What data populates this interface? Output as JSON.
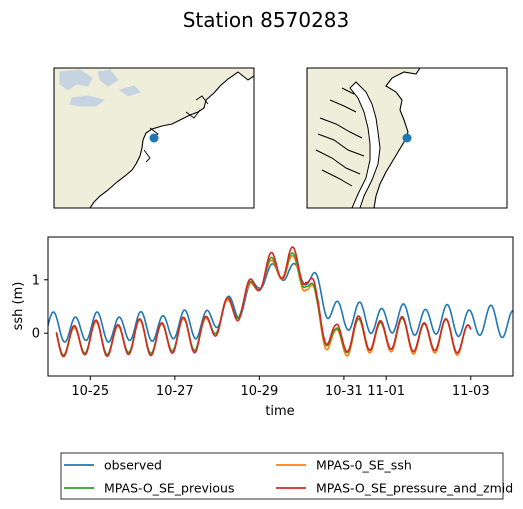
{
  "figure": {
    "title": "Station 8570283"
  },
  "maps": [
    {
      "name": "regional-map",
      "land_color": "#efeedb",
      "water_color": "#c6d4e2",
      "station_color": "#1f77b4"
    },
    {
      "name": "local-map",
      "land_color": "#efeedb",
      "station_color": "#1f77b4"
    }
  ],
  "chart_data": {
    "type": "line",
    "title": "",
    "xlabel": "time",
    "ylabel": "ssh (m)",
    "x_tick_labels": [
      "10-25",
      "10-27",
      "10-29",
      "10-31",
      "11-01",
      "11-03"
    ],
    "x_tick_days": [
      1,
      3,
      5,
      7,
      8,
      10
    ],
    "x_start": "10-24",
    "xlim_days": [
      0,
      11
    ],
    "ylim": [
      -0.8,
      1.8
    ],
    "y_ticks": [
      0,
      1
    ],
    "grid": false,
    "legend": {
      "placement": "below-chart",
      "columns": 2
    },
    "series": [
      {
        "name": "observed",
        "color": "#1f77b4",
        "start_day": 0,
        "end_day": 11,
        "amplitude": [
          [
            0,
            0.25
          ],
          [
            3,
            0.25
          ],
          [
            4.5,
            0.22
          ],
          [
            5.5,
            0.15
          ],
          [
            6.5,
            0.25
          ],
          [
            11,
            0.27
          ]
        ],
        "mean": [
          [
            0,
            0.1
          ],
          [
            2,
            0.1
          ],
          [
            3.5,
            0.15
          ],
          [
            4.5,
            0.5
          ],
          [
            5.0,
            1.0
          ],
          [
            5.7,
            1.2
          ],
          [
            6.1,
            1.1
          ],
          [
            6.6,
            0.55
          ],
          [
            7.0,
            0.3
          ],
          [
            8,
            0.25
          ],
          [
            11,
            0.2
          ]
        ]
      },
      {
        "name": "MPAS-0_SE_ssh",
        "color": "#ff7f0e",
        "start_day": 0.2,
        "end_day": 10,
        "amplitude": [
          [
            0,
            0.28
          ],
          [
            3,
            0.3
          ],
          [
            4.5,
            0.2
          ],
          [
            5.5,
            0.2
          ],
          [
            6.3,
            0.35
          ],
          [
            7,
            0.3
          ],
          [
            10,
            0.3
          ]
        ],
        "mean": [
          [
            0,
            -0.15
          ],
          [
            2,
            -0.1
          ],
          [
            3.5,
            -0.05
          ],
          [
            4.5,
            0.5
          ],
          [
            5.0,
            1.0
          ],
          [
            5.7,
            1.3
          ],
          [
            6.1,
            1.05
          ],
          [
            6.35,
            0.3
          ],
          [
            6.8,
            -0.2
          ],
          [
            7.5,
            -0.05
          ],
          [
            10,
            -0.1
          ]
        ]
      },
      {
        "name": "MPAS-O_SE_previous",
        "color": "#2ca02c",
        "start_day": 0.2,
        "end_day": 10,
        "amplitude": [
          [
            0,
            0.28
          ],
          [
            3,
            0.3
          ],
          [
            4.5,
            0.22
          ],
          [
            5.5,
            0.22
          ],
          [
            6.3,
            0.32
          ],
          [
            7,
            0.28
          ],
          [
            10,
            0.28
          ]
        ],
        "mean": [
          [
            0,
            -0.12
          ],
          [
            2,
            -0.08
          ],
          [
            3.5,
            -0.03
          ],
          [
            4.5,
            0.52
          ],
          [
            5.0,
            1.02
          ],
          [
            5.7,
            1.35
          ],
          [
            6.1,
            1.1
          ],
          [
            6.35,
            0.35
          ],
          [
            6.8,
            -0.15
          ],
          [
            7.5,
            -0.02
          ],
          [
            10,
            -0.08
          ]
        ]
      },
      {
        "name": "MPAS-O_SE_pressure_and_zmid",
        "color": "#d62728",
        "start_day": 0.2,
        "end_day": 10,
        "amplitude": [
          [
            0,
            0.3
          ],
          [
            3,
            0.32
          ],
          [
            4.5,
            0.25
          ],
          [
            5.5,
            0.28
          ],
          [
            6.3,
            0.35
          ],
          [
            7,
            0.3
          ],
          [
            10,
            0.28
          ]
        ],
        "mean": [
          [
            0,
            -0.12
          ],
          [
            2,
            -0.1
          ],
          [
            3.5,
            -0.05
          ],
          [
            4.5,
            0.5
          ],
          [
            5.0,
            1.05
          ],
          [
            5.7,
            1.4
          ],
          [
            6.1,
            1.2
          ],
          [
            6.35,
            0.4
          ],
          [
            6.8,
            -0.1
          ],
          [
            7.5,
            0.0
          ],
          [
            10,
            -0.08
          ]
        ]
      }
    ]
  }
}
